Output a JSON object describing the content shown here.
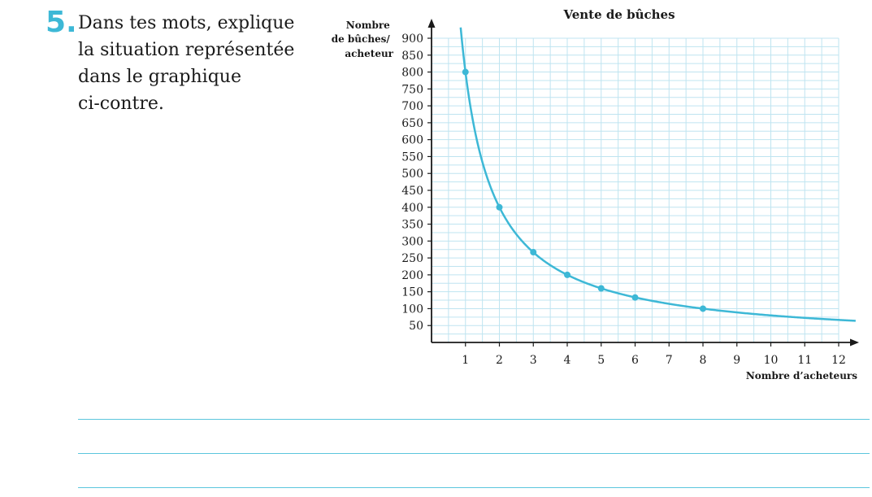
{
  "question": {
    "number": "5.",
    "lines": [
      "Dans tes mots, explique",
      "la situation représentée",
      "dans le graphique",
      "ci-contre."
    ]
  },
  "colors": {
    "accent": "#3db8d6",
    "grid": "#bfe4f0",
    "axis": "#1a1a1a",
    "answer_line": "#5cc6dd"
  },
  "chart_data": {
    "type": "line",
    "title": "Vente de bûches",
    "xlabel": "Nombre d’acheteurs",
    "ylabel_lines": [
      "Nombre",
      "de bûches/",
      "acheteur"
    ],
    "xlim": [
      0,
      12.5
    ],
    "ylim": [
      0,
      950
    ],
    "x_ticks": [
      1,
      2,
      3,
      4,
      5,
      6,
      7,
      8,
      9,
      10,
      11,
      12
    ],
    "y_ticks": [
      50,
      100,
      150,
      200,
      250,
      300,
      350,
      400,
      450,
      500,
      550,
      600,
      650,
      700,
      750,
      800,
      850,
      900
    ],
    "grid": true,
    "curve": {
      "equation": "y = 800 / x",
      "x_range": [
        0.8,
        12.5
      ]
    },
    "series": [
      {
        "points": [
          {
            "x": 1,
            "y": 800
          },
          {
            "x": 2,
            "y": 400
          },
          {
            "x": 3,
            "y": 267
          },
          {
            "x": 4,
            "y": 200
          },
          {
            "x": 5,
            "y": 160
          },
          {
            "x": 6,
            "y": 133
          },
          {
            "x": 8,
            "y": 100
          }
        ]
      }
    ]
  },
  "answer_lines_count": 3
}
